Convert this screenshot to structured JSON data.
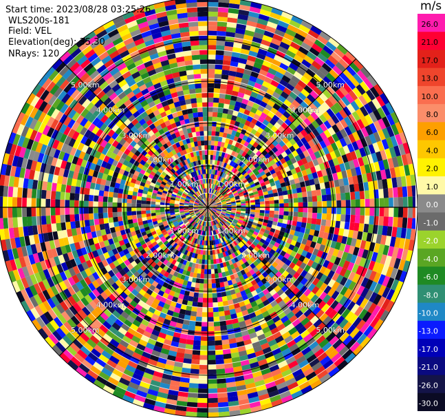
{
  "header": {
    "start_time": "Start time: 2023/08/28 03:25:26",
    "instrument": "WLS200s-181",
    "field": "Field: VEL",
    "elevation": "Elevation(deg): 35.30",
    "nrays": "NRays: 120"
  },
  "colorbar": {
    "unit": "m/s",
    "segments": [
      {
        "label": "26.0",
        "color": "#ff1cae"
      },
      {
        "label": "21.0",
        "color": "#ff0033"
      },
      {
        "label": "17.0",
        "color": "#e3211a"
      },
      {
        "label": "13.0",
        "color": "#ef452c"
      },
      {
        "label": "10.0",
        "color": "#fa6e4f"
      },
      {
        "label": "8.0",
        "color": "#fb8e6a"
      },
      {
        "label": "6.0",
        "color": "#fd9f00"
      },
      {
        "label": "4.0",
        "color": "#fec700"
      },
      {
        "label": "2.0",
        "color": "#fff200"
      },
      {
        "label": "1.0",
        "color": "#fff9a8"
      },
      {
        "label": "0.0",
        "color": "#8a8a8a"
      },
      {
        "label": "-1.0",
        "color": "#6b6b6b"
      },
      {
        "label": "-2.0",
        "color": "#9bd32c"
      },
      {
        "label": "-4.0",
        "color": "#5aa623"
      },
      {
        "label": "-6.0",
        "color": "#1f8a23"
      },
      {
        "label": "-8.0",
        "color": "#2f8f73"
      },
      {
        "label": "-10.0",
        "color": "#1f88c6"
      },
      {
        "label": "-13.0",
        "color": "#0a1bff"
      },
      {
        "label": "-17.0",
        "color": "#0000b8"
      },
      {
        "label": "-21.0",
        "color": "#0a0a80"
      },
      {
        "label": "-26.0",
        "color": "#141448"
      },
      {
        "label": "-30.0",
        "color": "#0b0b24"
      }
    ]
  },
  "range_rings": [
    {
      "label": "1.00km"
    },
    {
      "label": "2.00km"
    },
    {
      "label": "3.00km"
    },
    {
      "label": "4.00km"
    },
    {
      "label": "5.00km"
    }
  ],
  "chart_data": {
    "type": "heatmap",
    "projection": "polar PPI",
    "field": "VEL",
    "nrays": 120,
    "color_scale": [
      -30.0,
      26.0
    ],
    "ring_distances_km": [
      1.0,
      2.0,
      3.0,
      4.0,
      5.0
    ]
  }
}
